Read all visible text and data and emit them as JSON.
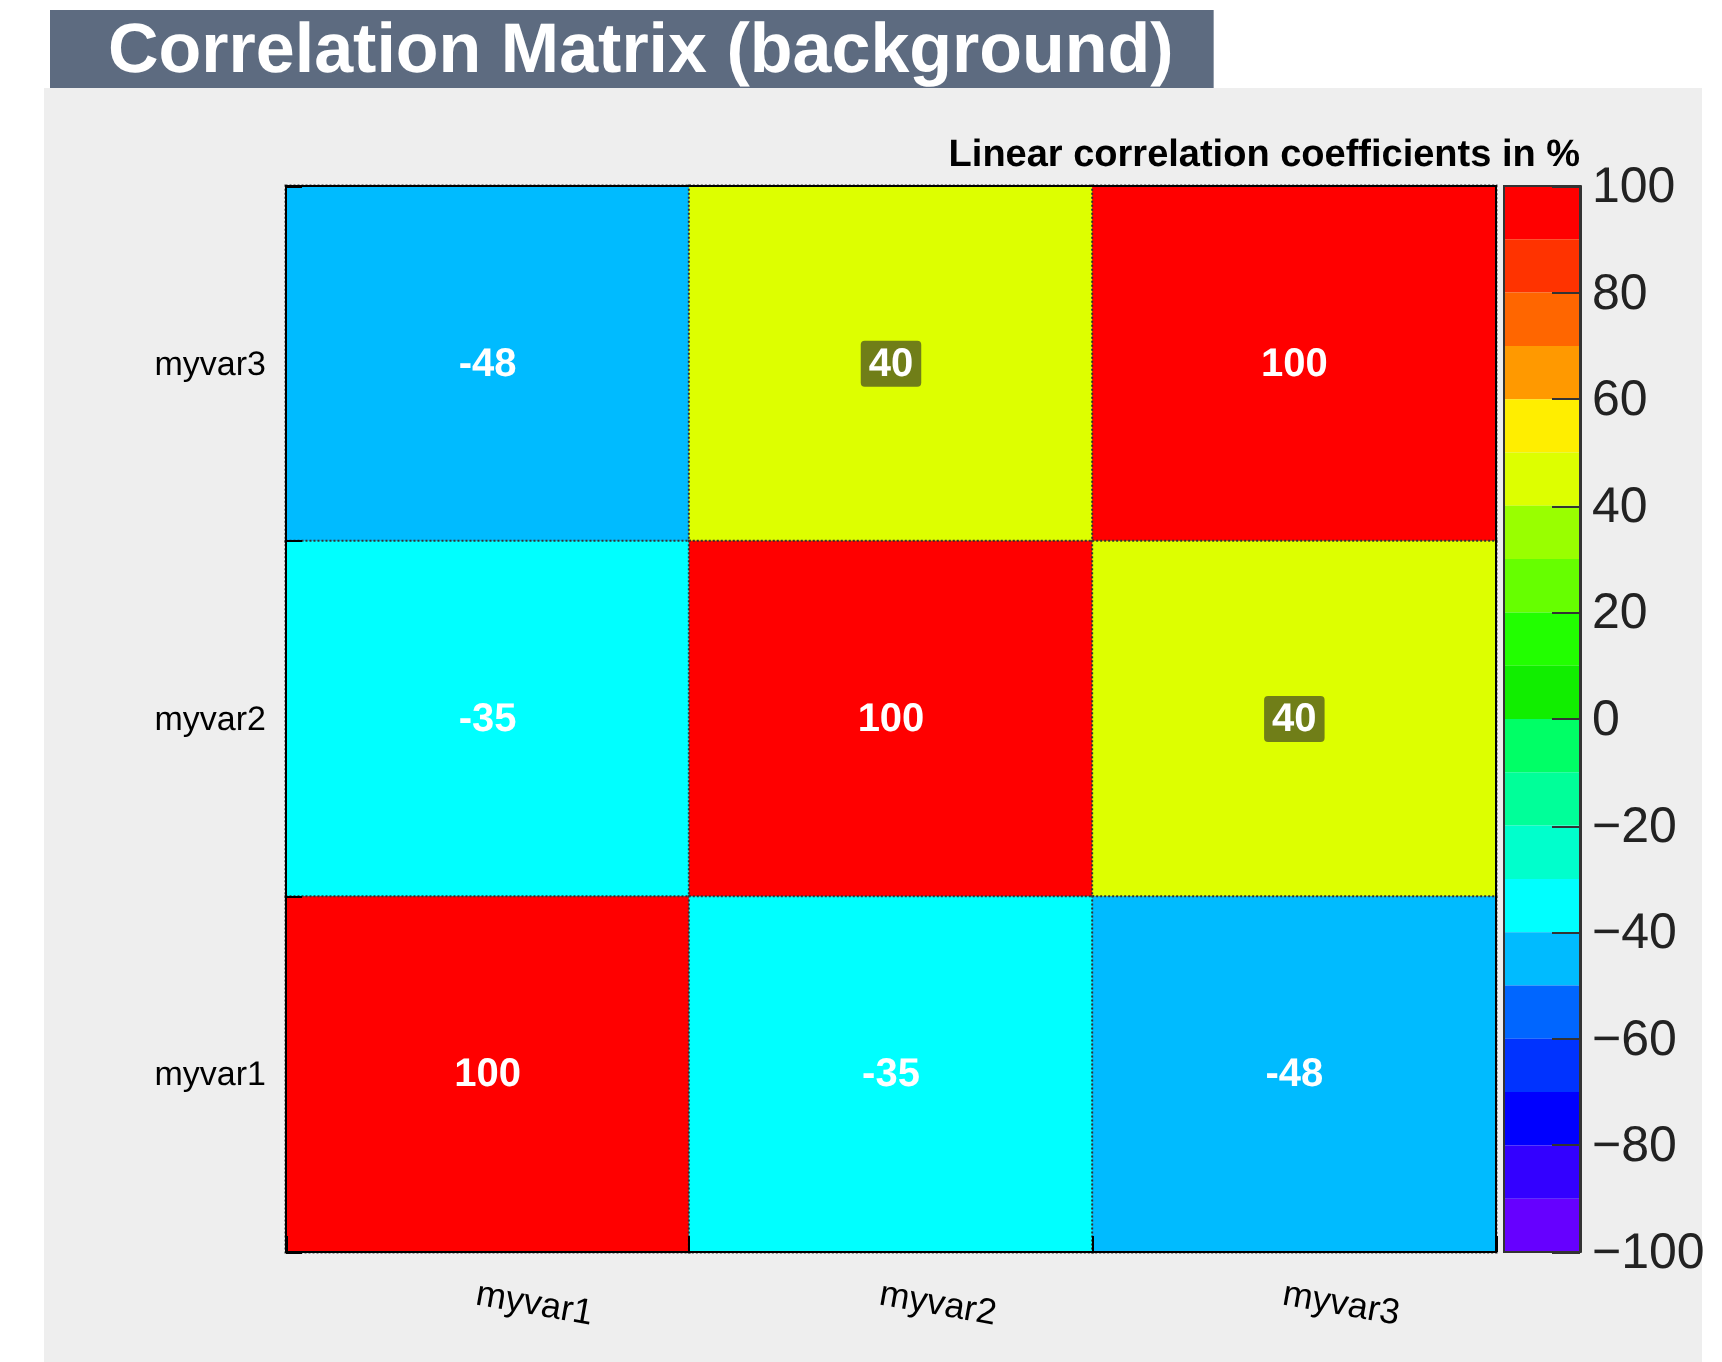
{
  "chart_data": {
    "type": "heatmap",
    "title": "Correlation Matrix (background)",
    "clabel": "Linear correlation coefficients in %",
    "categories": [
      "myvar1",
      "myvar2",
      "myvar3"
    ],
    "y_categories": [
      "myvar3",
      "myvar2",
      "myvar1"
    ],
    "cells": [
      [
        -48,
        40,
        100
      ],
      [
        -35,
        100,
        40
      ],
      [
        100,
        -35,
        -48
      ]
    ],
    "data_labels": true,
    "clim": [
      -100,
      100
    ],
    "cticks": [
      {
        "value": -100,
        "label": "−100"
      },
      {
        "value": -80,
        "label": "−80"
      },
      {
        "value": -60,
        "label": "−60"
      },
      {
        "value": -40,
        "label": "−40"
      },
      {
        "value": -20,
        "label": "−20"
      },
      0,
      20,
      40,
      60,
      80,
      100
    ]
  }
}
